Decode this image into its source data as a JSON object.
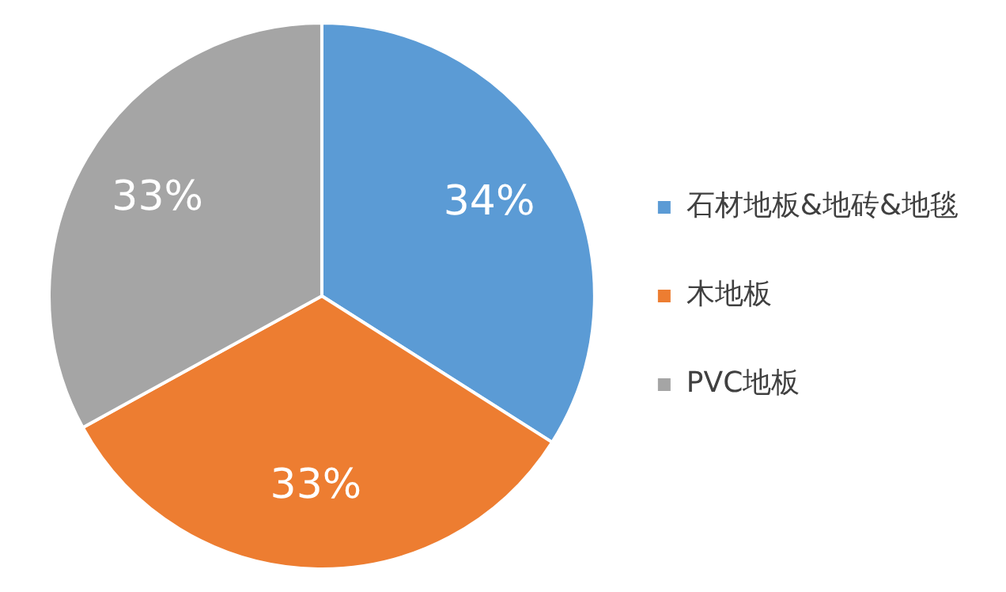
{
  "chart_data": {
    "type": "pie",
    "categories": [
      "石材地板&地砖&地毯",
      "木地板",
      "PVC地板"
    ],
    "values": [
      34,
      33,
      33
    ],
    "colors": [
      "#5b9bd5",
      "#ed7d31",
      "#a5a5a5"
    ],
    "value_labels": [
      "34%",
      "33%",
      "33%"
    ],
    "legend": "right"
  }
}
